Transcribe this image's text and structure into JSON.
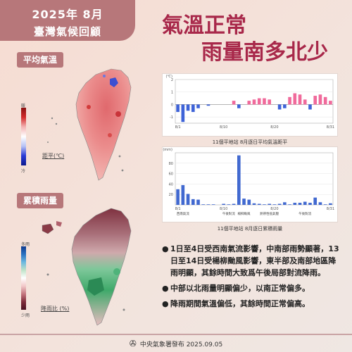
{
  "header": {
    "title_line1": "2025年 8月",
    "title_line2": "臺灣氣候回顧",
    "headline_line1": "氣溫正常",
    "headline_line2": "雨量南多北少"
  },
  "temp_map": {
    "label": "平均氣溫",
    "legend_top": "暖",
    "legend_bottom": "冷",
    "caption": "距平(℃)",
    "ticks": [
      "3",
      "2",
      "1",
      "0.5",
      "-0.5",
      "-1",
      "-2",
      "-3"
    ],
    "colors": {
      "warm": "#d32b2b",
      "cool": "#2a3bd6"
    }
  },
  "rain_map": {
    "label": "累積雨量",
    "legend_top": "多雨",
    "legend_bottom": "少雨",
    "caption": "降雨比 (%)",
    "ticks": [
      "400",
      "300",
      "200",
      "150",
      "100",
      "80",
      "60",
      "40",
      "20"
    ],
    "colors": {
      "wet": "#2e9a5c",
      "dry": "#8a3a46"
    }
  },
  "chart_data": [
    {
      "type": "bar",
      "x": [
        1,
        2,
        3,
        4,
        5,
        6,
        7,
        8,
        9,
        10,
        11,
        12,
        13,
        14,
        15,
        16,
        17,
        18,
        19,
        20,
        21,
        22,
        23,
        24,
        25,
        26,
        27,
        28,
        29,
        30,
        31
      ],
      "values": [
        -0.6,
        -1.4,
        -0.5,
        -0.6,
        -0.3,
        0,
        -0.1,
        0,
        0,
        0,
        0,
        0.3,
        -0.3,
        0,
        0.3,
        0.4,
        0.5,
        0.5,
        0.4,
        0,
        -0.4,
        -0.3,
        0.6,
        0.9,
        0.8,
        0.4,
        -0.4,
        0.7,
        0.8,
        0.6,
        0.3
      ],
      "xticks": [
        "8/1",
        "8/10",
        "8/20",
        "8/31"
      ],
      "yticks": [
        "2",
        "1",
        "0",
        "-1"
      ],
      "ylabel": "(℃)",
      "ylim": [
        -1.5,
        2
      ],
      "colors": {
        "positive": "#f06a9b",
        "negative": "#3e63d8"
      },
      "title": "11個平地站 8月逐日平均氣溫距平"
    },
    {
      "type": "bar",
      "x": [
        1,
        2,
        3,
        4,
        5,
        6,
        7,
        8,
        9,
        10,
        11,
        12,
        13,
        14,
        15,
        16,
        17,
        18,
        19,
        20,
        21,
        22,
        23,
        24,
        25,
        26,
        27,
        28,
        29,
        30,
        31
      ],
      "values": [
        30,
        38,
        21,
        11,
        10,
        1,
        1,
        1,
        0,
        2,
        1,
        2,
        95,
        12,
        10,
        3,
        2,
        1,
        2,
        1,
        2,
        5,
        1,
        4,
        4,
        6,
        4,
        14,
        5,
        1,
        3
      ],
      "xticks": [
        "8/1",
        "8/10",
        "8/20",
        "8/31"
      ],
      "yticks": [
        "80",
        "60",
        "40",
        "20"
      ],
      "ylabel": "(mm)",
      "ylim": [
        0,
        100
      ],
      "annotations": [
        "西南氣流",
        "午後對流",
        "楊柳颱風",
        "熱帶性低氣壓",
        "午後對流"
      ],
      "color": "#4169d0",
      "title": "11個平地站 8月逐日累積雨量"
    }
  ],
  "bullets": [
    "1日至4日受西南氣流影響，中南部雨勢顯著，13日至14日受楊柳颱風影響，東半部及南部地區降雨明顯，其餘時間大致爲午後局部對流降雨。",
    "中部以北雨量明顯偏少，以南正常偏多。",
    "降雨期間氣溫偏低，其餘時間正常偏高。"
  ],
  "footer": {
    "text": "中央氣象署發布 2025.09.05"
  }
}
